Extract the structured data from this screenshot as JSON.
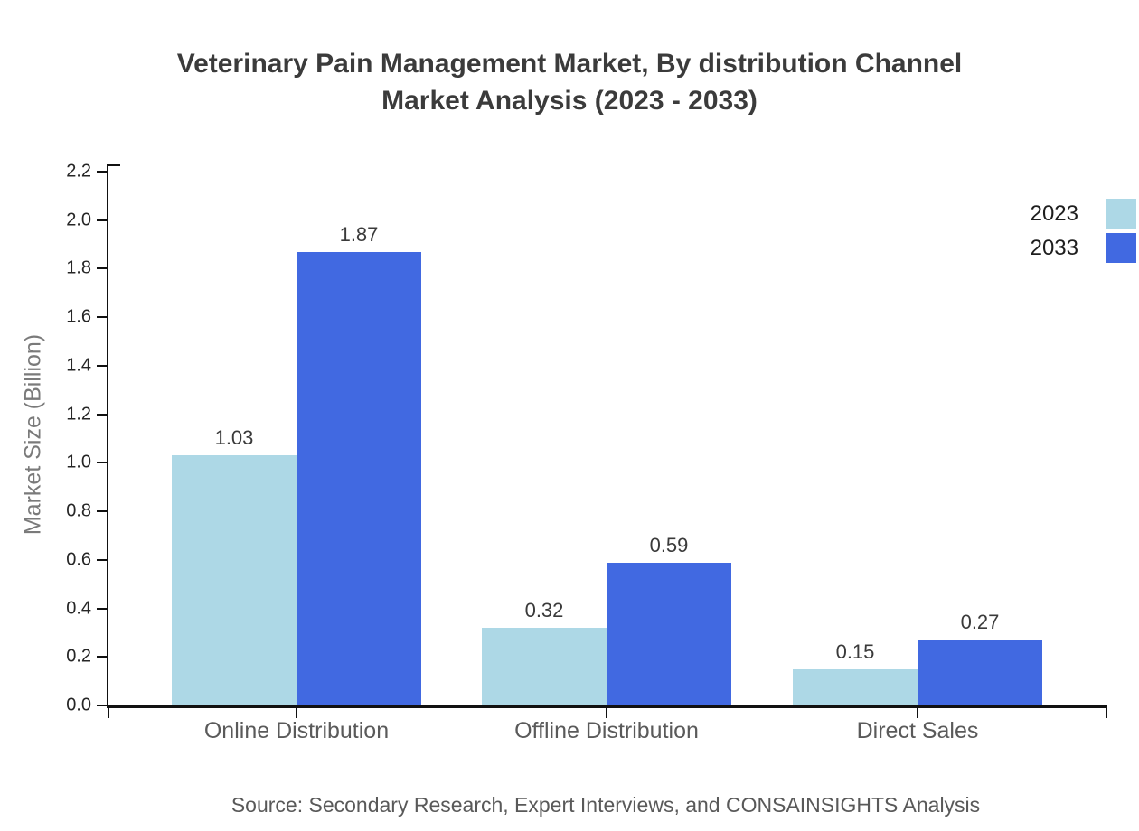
{
  "title": {
    "line1": "Veterinary Pain Management Market, By distribution Channel",
    "line2": "Market Analysis (2023 - 2033)"
  },
  "y_axis": {
    "label": "Market Size (Billion)"
  },
  "legend": [
    {
      "label": "2023",
      "color": "#ADD8E6"
    },
    {
      "label": "2033",
      "color": "#4169E1"
    }
  ],
  "source": "Source: Secondary Research, Expert Interviews, and CONSAINSIGHTS Analysis",
  "chart_data": {
    "type": "bar",
    "title": "Veterinary Pain Management Market, By distribution Channel Market Analysis (2023 - 2033)",
    "categories": [
      "Online Distribution",
      "Offline Distribution",
      "Direct Sales"
    ],
    "series": [
      {
        "name": "2023",
        "color": "#ADD8E6",
        "values": [
          1.03,
          0.32,
          0.15
        ]
      },
      {
        "name": "2033",
        "color": "#4169E1",
        "values": [
          1.87,
          0.59,
          0.27
        ]
      }
    ],
    "xlabel": "",
    "ylabel": "Market Size (Billion)",
    "ylim": [
      0,
      2.23
    ],
    "yticks": [
      0.0,
      0.2,
      0.4,
      0.6,
      0.8,
      1.0,
      1.2,
      1.4,
      1.6,
      1.8,
      2.0,
      2.2
    ],
    "grid": false,
    "legend_position": "top-right",
    "value_labels": true
  }
}
